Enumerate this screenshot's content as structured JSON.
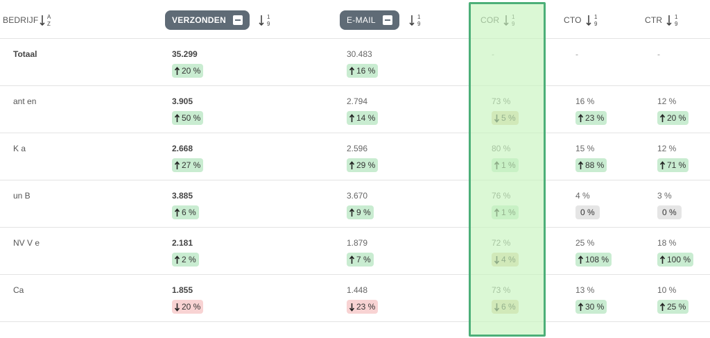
{
  "header": {
    "company": "BEDRIJF",
    "sent": "VERZONDEN",
    "mail": "E-MAIL",
    "cor": "COR",
    "cto": "CTO",
    "ctr": "CTR"
  },
  "rows": [
    {
      "company": "Totaal",
      "sent": "35.299",
      "sent_delta": "20 %",
      "sent_dir": "up",
      "mail": "30.483",
      "mail_delta": "16 %",
      "mail_dir": "up",
      "cor": "-",
      "cto": "-",
      "ctr": "-"
    },
    {
      "company": "ant en",
      "sent": "3.905",
      "sent_delta": "50 %",
      "sent_dir": "up",
      "mail": "2.794",
      "mail_delta": "14 %",
      "mail_dir": "up",
      "cor": "73 %",
      "cor_delta": "5 %",
      "cor_dir": "down-tan",
      "cto": "16 %",
      "cto_delta": "23 %",
      "cto_dir": "up",
      "ctr": "12 %",
      "ctr_delta": "20 %",
      "ctr_dir": "up"
    },
    {
      "company": "K a",
      "sent": "2.668",
      "sent_delta": "27 %",
      "sent_dir": "up",
      "mail": "2.596",
      "mail_delta": "29 %",
      "mail_dir": "up",
      "cor": "80 %",
      "cor_delta": "1 %",
      "cor_dir": "up",
      "cto": "15 %",
      "cto_delta": "88 %",
      "cto_dir": "up",
      "ctr": "12 %",
      "ctr_delta": "71 %",
      "ctr_dir": "up"
    },
    {
      "company": "un B",
      "sent": "3.885",
      "sent_delta": "6 %",
      "sent_dir": "up",
      "mail": "3.670",
      "mail_delta": "9 %",
      "mail_dir": "up",
      "cor": "76 %",
      "cor_delta": "1 %",
      "cor_dir": "up",
      "cto": "4 %",
      "cto_delta": "0 %",
      "cto_dir": "zero",
      "ctr": "3 %",
      "ctr_delta": "0 %",
      "ctr_dir": "zero"
    },
    {
      "company": "NV V e",
      "sent": "2.181",
      "sent_delta": "2 %",
      "sent_dir": "up",
      "mail": "1.879",
      "mail_delta": "7 %",
      "mail_dir": "up",
      "cor": "72 %",
      "cor_delta": "4 %",
      "cor_dir": "down-tan",
      "cto": "25 %",
      "cto_delta": "108 %",
      "cto_dir": "up",
      "ctr": "18 %",
      "ctr_delta": "100 %",
      "ctr_dir": "up"
    },
    {
      "company": "Ca",
      "sent": "1.855",
      "sent_delta": "20 %",
      "sent_dir": "down-red",
      "mail": "1.448",
      "mail_delta": "23 %",
      "mail_dir": "down-red",
      "cor": "73 %",
      "cor_delta": "6 %",
      "cor_dir": "down-tan",
      "cto": "13 %",
      "cto_delta": "30 %",
      "cto_dir": "up",
      "ctr": "10 %",
      "ctr_delta": "25 %",
      "ctr_dir": "up"
    }
  ],
  "colors": {
    "header_pill": "#5f6b76",
    "badge_up": "#c9ecd1",
    "badge_down_red": "#f8d3d3",
    "badge_down_tan": "#e3d5ae",
    "badge_zero": "#e5e5e5",
    "highlight_fill": "#d6f7cc",
    "highlight_border": "#4caf78"
  },
  "icons": {
    "company_sort": "sort-alpha-icon",
    "numeric_sort": "sort-numeric-icon",
    "collapse": "minus-square-icon",
    "up": "arrow-up-icon",
    "down": "arrow-down-icon"
  }
}
